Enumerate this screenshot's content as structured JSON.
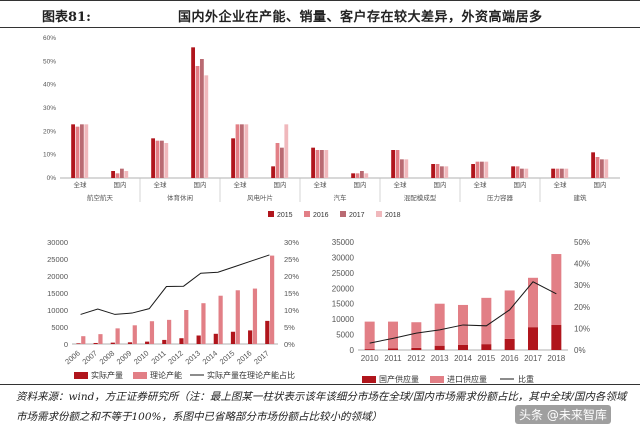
{
  "figure": {
    "number": "图表81:",
    "title": "国内外企业在产能、销量、客户存在较大差异，外资高端居多"
  },
  "colors": {
    "y2015": "#b0151c",
    "y2016": "#e27f86",
    "y2017": "#b96a72",
    "y2018": "#f0b8bc",
    "line": "#1a1a1a"
  },
  "chart_data": [
    {
      "type": "bar",
      "groups": [
        "航空航天",
        "体育休闲",
        "风电叶片",
        "汽车",
        "混配模成型",
        "压力容器",
        "建筑"
      ],
      "subgroups": [
        "全球",
        "国内"
      ],
      "series_names": [
        "2015",
        "2016",
        "2017",
        "2018"
      ],
      "values": [
        [
          [
            23,
            22,
            23,
            23
          ],
          [
            3,
            2,
            4,
            3
          ]
        ],
        [
          [
            17,
            16,
            16,
            15
          ],
          [
            56,
            48,
            51,
            44
          ]
        ],
        [
          [
            17,
            23,
            23,
            23
          ],
          [
            5,
            15,
            13,
            23
          ]
        ],
        [
          [
            13,
            12,
            12,
            12
          ],
          [
            2,
            2,
            3,
            2
          ]
        ],
        [
          [
            12,
            12,
            8,
            8
          ],
          [
            6,
            6,
            5,
            5
          ]
        ],
        [
          [
            6,
            7,
            7,
            7
          ],
          [
            5,
            5,
            4,
            4
          ]
        ],
        [
          [
            4,
            4,
            4,
            4
          ],
          [
            11,
            9,
            8,
            8
          ]
        ]
      ],
      "ylim": [
        0,
        60
      ],
      "yticks": [
        "0%",
        "10%",
        "20%",
        "30%",
        "40%",
        "50%",
        "60%"
      ],
      "grid": false,
      "legend_position": "bottom"
    },
    {
      "type": "bar",
      "categories": [
        "2006",
        "2007",
        "2008",
        "2009",
        "2010",
        "2011",
        "2012",
        "2013",
        "2014",
        "2015",
        "2016",
        "2017"
      ],
      "series": [
        {
          "name": "实际产量",
          "values": [
            200,
            300,
            400,
            500,
            700,
            1200,
            1700,
            2500,
            3000,
            3600,
            4000,
            6800
          ]
        },
        {
          "name": "理论产能",
          "values": [
            2300,
            2900,
            4600,
            5500,
            6700,
            7100,
            10000,
            12000,
            14200,
            15800,
            16300,
            26000
          ]
        },
        {
          "name": "实际产量在理论产能占比",
          "type": "line",
          "axis": "right",
          "values": [
            8.7,
            10.3,
            8.7,
            9.1,
            10.4,
            16.9,
            17.0,
            20.8,
            21.1,
            22.8,
            24.5,
            26.2
          ]
        }
      ],
      "ylim": [
        0,
        30000
      ],
      "yticks": [
        "0",
        "5000",
        "10000",
        "15000",
        "20000",
        "25000",
        "30000"
      ],
      "y2lim": [
        0,
        30
      ],
      "y2ticks": [
        "0%",
        "5%",
        "10%",
        "15%",
        "20%",
        "25%",
        "30%"
      ],
      "legend_position": "bottom"
    },
    {
      "type": "bar",
      "stacked": true,
      "categories": [
        "2010",
        "2011",
        "2012",
        "2013",
        "2014",
        "2015",
        "2016",
        "2017",
        "2018"
      ],
      "series": [
        {
          "name": "国产供应量",
          "values": [
            300,
            500,
            700,
            1400,
            1700,
            1900,
            3600,
            7400,
            8100
          ]
        },
        {
          "name": "进口供应量",
          "values": [
            8900,
            8700,
            8300,
            13600,
            12900,
            15000,
            15700,
            16000,
            23000
          ]
        },
        {
          "name": "比重",
          "type": "line",
          "axis": "right",
          "values": [
            3.2,
            5.4,
            7.8,
            9.3,
            11.6,
            11.2,
            18.6,
            31.6,
            26.0
          ]
        }
      ],
      "ylim": [
        0,
        35000
      ],
      "yticks": [
        "0",
        "5000",
        "10000",
        "15000",
        "20000",
        "25000",
        "30000",
        "35000"
      ],
      "y2lim": [
        0,
        50
      ],
      "y2ticks": [
        "0%",
        "10%",
        "20%",
        "30%",
        "40%",
        "50%"
      ],
      "legend_position": "bottom"
    }
  ],
  "source": {
    "text": "资料来源：wind，方正证券研究所（注：最上图某一柱状表示该年该细分市场在全球/国内市场需求份额占比，其中全球/国内各领域市场需求份额之和不等于100%，系图中已省略部分市场份额占比较小的领域）"
  },
  "watermark": "头条 @未来智库"
}
